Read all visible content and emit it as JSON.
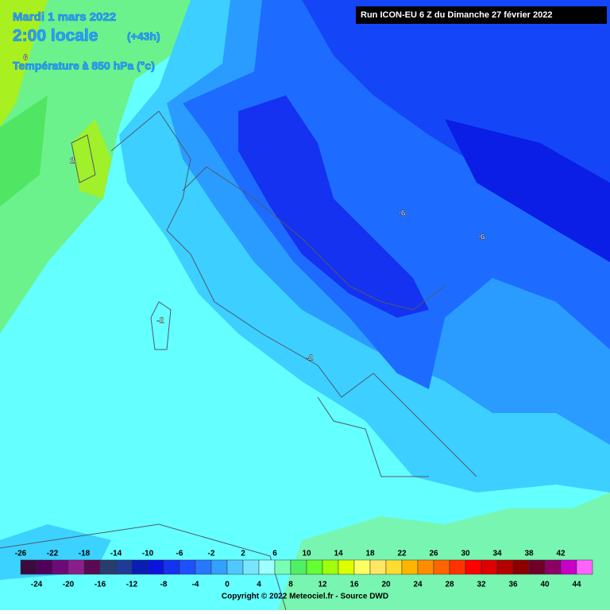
{
  "header": {
    "date": "Mardi 1 mars 2022",
    "time": "2:00 locale",
    "lead": "(+43h)",
    "field": "Température à 850 hPa (°c)",
    "run": "Run ICON-EU 6 Z du Dimanche 27 février 2022"
  },
  "contour_labels": [
    "6",
    "2",
    "-6",
    "-6",
    "-2",
    "-2"
  ],
  "legend": {
    "top_labels": [
      -26,
      -22,
      -18,
      -14,
      -10,
      -6,
      -2,
      2,
      6,
      10,
      14,
      18,
      22,
      26,
      30,
      34,
      38,
      42
    ],
    "bottom_labels": [
      -24,
      -20,
      -16,
      -12,
      -8,
      -4,
      0,
      4,
      8,
      12,
      16,
      20,
      24,
      28,
      32,
      36,
      40,
      44
    ],
    "colors": [
      "#3c0a3c",
      "#50005a",
      "#6e0a78",
      "#8c1e8c",
      "#5a0a50",
      "#283c6e",
      "#1e3c96",
      "#0a1eb4",
      "#0a14dc",
      "#1432f0",
      "#1e50ff",
      "#2878ff",
      "#32a0ff",
      "#50c8ff",
      "#78e6ff",
      "#a0ffff",
      "#78ffb4",
      "#50f064",
      "#64ff32",
      "#a0ff0a",
      "#dcff00",
      "#ffff64",
      "#ffe664",
      "#ffdc32",
      "#ffb400",
      "#ff8c00",
      "#ff6400",
      "#ff3200",
      "#ff0000",
      "#dc0000",
      "#b40000",
      "#8c0000",
      "#6e0028",
      "#8c0064",
      "#c800c8",
      "#ff64ff"
    ]
  },
  "footer": {
    "copyright": "Copyright © 2022 Meteociel.fr - Source DWD"
  }
}
